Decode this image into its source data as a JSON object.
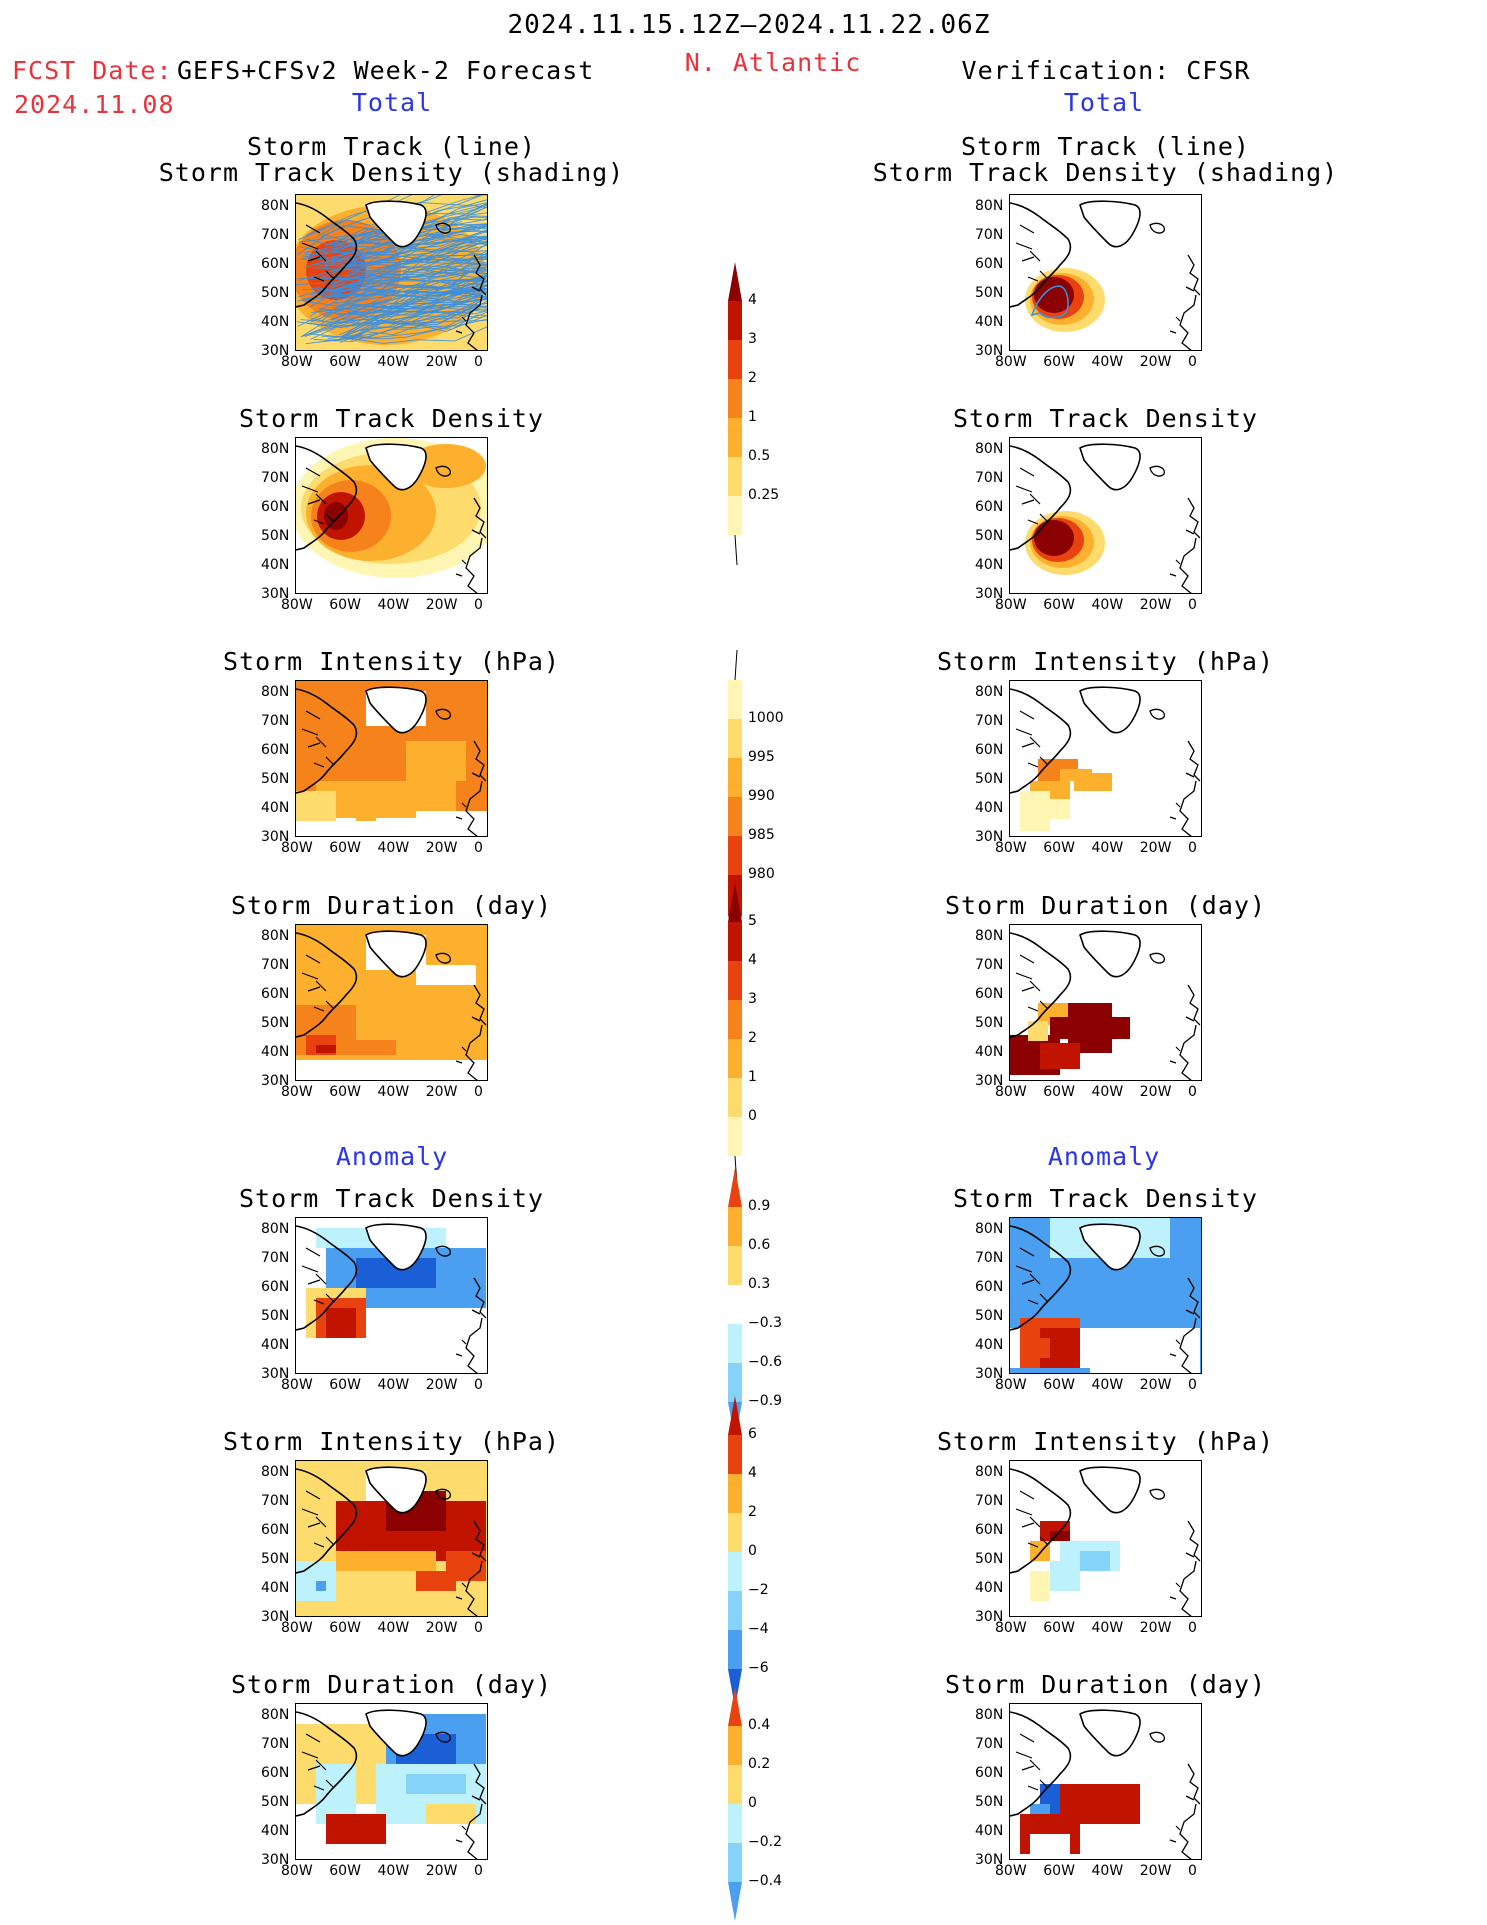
{
  "header": {
    "period": "2024.11.15.12Z–2024.11.22.06Z",
    "region": "N. Atlantic",
    "fcst_label": "FCST Date:",
    "fcst_model": "GEFS+CFSv2 Week-2 Forecast",
    "fcst_date": "2024.11.08",
    "verification": "Verification: CFSR"
  },
  "sections": {
    "total": "Total",
    "anomaly": "Anomaly"
  },
  "panel_titles": {
    "track_line": "Storm Track (line)",
    "track_shading": "Storm Track Density (shading)",
    "density": "Storm Track Density",
    "intensity": "Storm Intensity (hPa)",
    "duration": "Storm Duration (day)"
  },
  "axes": {
    "lon_ticks": [
      "80W",
      "60W",
      "40W",
      "20W",
      "0"
    ],
    "lat_ticks": [
      "80N",
      "70N",
      "60N",
      "50N",
      "40N",
      "30N"
    ]
  },
  "colorbars": {
    "density_total": [
      "4",
      "3",
      "2",
      "1",
      "0.5",
      "0.25"
    ],
    "intensity_total": [
      "1000",
      "995",
      "990",
      "985",
      "980"
    ],
    "duration_total": [
      "5",
      "4",
      "3",
      "2",
      "1",
      "0"
    ],
    "density_anom": [
      "0.9",
      "0.6",
      "0.3",
      "−0.3",
      "−0.6",
      "−0.9"
    ],
    "intensity_anom": [
      "6",
      "4",
      "2",
      "0",
      "−2",
      "−4",
      "−6"
    ],
    "duration_anom": [
      "0.4",
      "0.2",
      "0",
      "−0.2",
      "−0.4"
    ]
  },
  "colors": {
    "warm": [
      "#fff6b3",
      "#fddb6d",
      "#fcb02e",
      "#f6821c",
      "#e8430e",
      "#c01400",
      "#8b0000"
    ],
    "cool": [
      "#bdf1fb",
      "#86d3fa",
      "#4a9ff0",
      "#1a5fd6"
    ],
    "track_line": "#3a8fe0"
  }
}
